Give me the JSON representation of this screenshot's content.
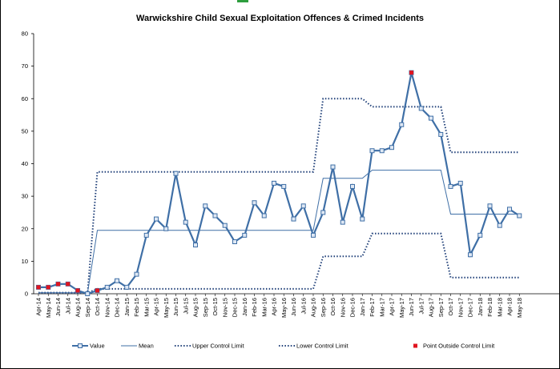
{
  "chart_data": {
    "type": "line",
    "title": "Warwickshire Child Sexual Exploitation Offences & Crimed Incidents",
    "xlabel": "",
    "ylabel": "",
    "ylim": [
      0,
      80
    ],
    "yticks": [
      0,
      10,
      20,
      30,
      40,
      50,
      60,
      70,
      80
    ],
    "grid": false,
    "legend_position": "bottom",
    "categories": [
      "Apr-14",
      "May-14",
      "Jun-14",
      "Jul-14",
      "Aug-14",
      "Sep-14",
      "Oct-14",
      "Nov-14",
      "Dec-14",
      "Jan-15",
      "Feb-15",
      "Mar-15",
      "Apr-15",
      "May-15",
      "Jun-15",
      "Jul-15",
      "Aug-15",
      "Sep-15",
      "Oct-15",
      "Nov-15",
      "Dec-15",
      "Jan-16",
      "Feb-16",
      "Mar-16",
      "Apr-16",
      "May-16",
      "Jun-16",
      "Jul-16",
      "Aug-16",
      "Sep-16",
      "Oct-16",
      "Nov-16",
      "Dec-16",
      "Jan-17",
      "Feb-17",
      "Mar-17",
      "Apr-17",
      "May-17",
      "Jun-17",
      "Jul-17",
      "Aug-17",
      "Sep-17",
      "Oct-17",
      "Nov-17",
      "Dec-17",
      "Jan-18",
      "Feb-18",
      "Mar-18",
      "Apr-18",
      "May-18"
    ],
    "series": [
      {
        "name": "Value",
        "color": "#3f6fa6",
        "style": "line-square-markers",
        "values": [
          2,
          2,
          3,
          3,
          1,
          0,
          1,
          2,
          4,
          2,
          6,
          18,
          23,
          20,
          37,
          22,
          15,
          27,
          24,
          21,
          16,
          18,
          28,
          24,
          34,
          33,
          23,
          27,
          18,
          25,
          39,
          22,
          33,
          23,
          44,
          44,
          45,
          52,
          68,
          57,
          54,
          49,
          33,
          34,
          12,
          18,
          27,
          21,
          26,
          24
        ]
      },
      {
        "name": "Mean",
        "color": "#3f6fa6",
        "style": "thin-line",
        "values": [
          0.3,
          0.3,
          0.3,
          0.3,
          0.3,
          0.3,
          19.5,
          19.5,
          19.5,
          19.5,
          19.5,
          19.5,
          19.5,
          19.5,
          19.5,
          19.5,
          19.5,
          19.5,
          19.5,
          19.5,
          19.5,
          19.5,
          19.5,
          19.5,
          19.5,
          19.5,
          19.5,
          19.5,
          19.5,
          35.5,
          35.5,
          35.5,
          35.5,
          35.5,
          38,
          38,
          38,
          38,
          38,
          38,
          38,
          38,
          24.5,
          24.5,
          24.5,
          24.5,
          24.5,
          24.5,
          24.5,
          24.5
        ]
      },
      {
        "name": "Upper Control Limit",
        "color": "#1f3f78",
        "style": "dotted",
        "values": [
          0.3,
          0.3,
          0.3,
          0.3,
          0.3,
          0.3,
          37.5,
          37.5,
          37.5,
          37.5,
          37.5,
          37.5,
          37.5,
          37.5,
          37.5,
          37.5,
          37.5,
          37.5,
          37.5,
          37.5,
          37.5,
          37.5,
          37.5,
          37.5,
          37.5,
          37.5,
          37.5,
          37.5,
          37.5,
          60,
          60,
          60,
          60,
          60,
          57.5,
          57.5,
          57.5,
          57.5,
          57.5,
          57.5,
          57.5,
          57.5,
          43.5,
          43.5,
          43.5,
          43.5,
          43.5,
          43.5,
          43.5,
          43.5
        ]
      },
      {
        "name": "Lower Control Limit",
        "color": "#1f3f78",
        "style": "dotted",
        "values": [
          0.3,
          0.3,
          0.3,
          0.3,
          0.3,
          0.3,
          1.5,
          1.5,
          1.5,
          1.5,
          1.5,
          1.5,
          1.5,
          1.5,
          1.5,
          1.5,
          1.5,
          1.5,
          1.5,
          1.5,
          1.5,
          1.5,
          1.5,
          1.5,
          1.5,
          1.5,
          1.5,
          1.5,
          1.5,
          11.5,
          11.5,
          11.5,
          11.5,
          11.5,
          18.5,
          18.5,
          18.5,
          18.5,
          18.5,
          18.5,
          18.5,
          18.5,
          5,
          5,
          5,
          5,
          5,
          5,
          5,
          5
        ]
      },
      {
        "name": "Point Outside Control Limit",
        "color": "#e0151f",
        "style": "red-square-points",
        "points": [
          {
            "x": "Apr-14",
            "y": 2
          },
          {
            "x": "May-14",
            "y": 2
          },
          {
            "x": "Jun-14",
            "y": 3
          },
          {
            "x": "Jul-14",
            "y": 3
          },
          {
            "x": "Aug-14",
            "y": 1
          },
          {
            "x": "Oct-14",
            "y": 1
          },
          {
            "x": "Jun-17",
            "y": 68
          }
        ]
      }
    ]
  }
}
